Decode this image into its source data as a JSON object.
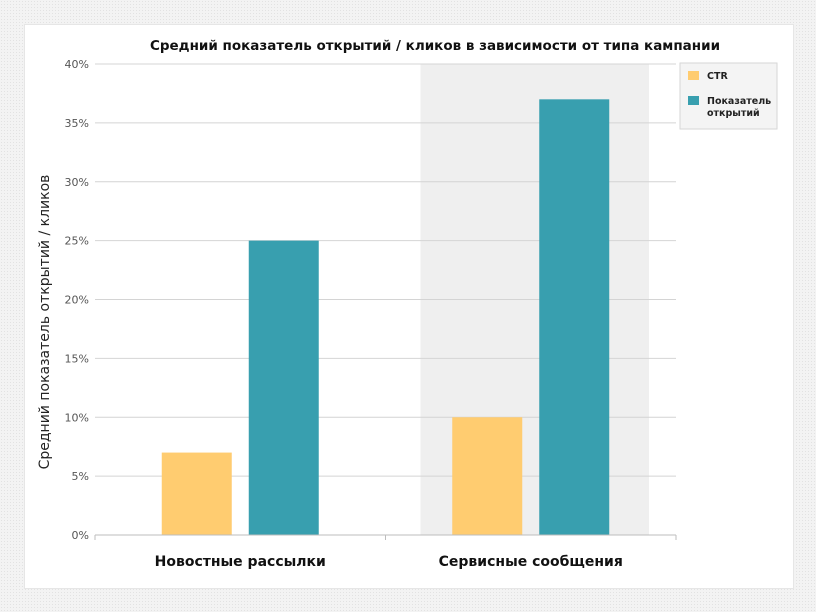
{
  "chart_data": {
    "type": "bar",
    "title": "Средний показатель открытий / кликов в зависимости от типа кампании",
    "xlabel": "",
    "ylabel": "Средний показатель открытий / кликов",
    "categories": [
      "Новостные рассылки",
      "Сервисные сообщения"
    ],
    "series": [
      {
        "name": "CTR",
        "values": [
          7,
          10
        ],
        "color": "#FFCC70"
      },
      {
        "name": "Показатель открытий",
        "values": [
          25,
          37
        ],
        "color": "#389FAF"
      }
    ],
    "ylim": [
      0,
      40
    ],
    "yticks": [
      0,
      5,
      10,
      15,
      20,
      25,
      30,
      35,
      40
    ],
    "ytick_labels": [
      "0%",
      "5%",
      "10%",
      "15%",
      "20%",
      "25%",
      "30%",
      "35%",
      "40%"
    ],
    "highlighted_category": "Сервисные сообщения",
    "grid": true,
    "legend": "top-right"
  }
}
